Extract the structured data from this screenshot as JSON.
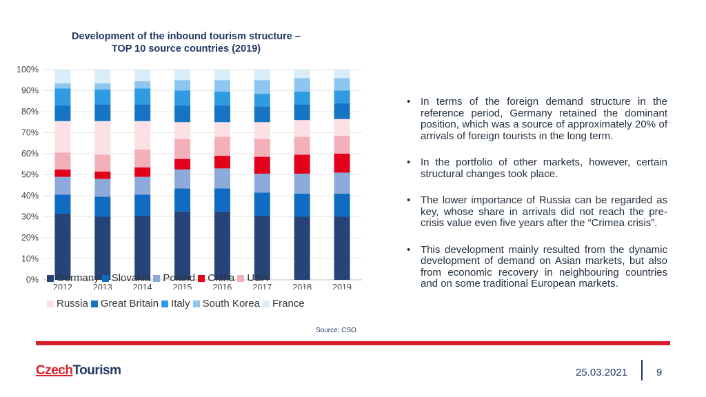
{
  "chart_data": {
    "type": "bar",
    "stacked": true,
    "title": "Development of the inbound tourism structure – TOP 10 source countries (2019)",
    "title_line1": "Development of the inbound tourism structure –",
    "title_line2": "TOP 10 source countries (2019)",
    "categories": [
      "2012",
      "2013",
      "2014",
      "2015",
      "2016",
      "2017",
      "2018",
      "2019"
    ],
    "y_ticks": [
      "0%",
      "10%",
      "20%",
      "30%",
      "40%",
      "50%",
      "60%",
      "70%",
      "80%",
      "90%",
      "100%"
    ],
    "ylim": [
      0,
      100
    ],
    "legend_position": "bottom",
    "series": [
      {
        "name": "Germany",
        "color": "#264478",
        "values": [
          31.5,
          30,
          30.5,
          32.5,
          32.5,
          30.5,
          30,
          30
        ]
      },
      {
        "name": "Slovakia",
        "color": "#0f6cc2",
        "values": [
          9,
          9.5,
          10,
          11,
          11,
          11,
          11,
          11
        ]
      },
      {
        "name": "Poland",
        "color": "#8eaadb",
        "values": [
          8.5,
          8.5,
          8.5,
          9,
          9.5,
          9,
          9.5,
          10
        ]
      },
      {
        "name": "China",
        "color": "#e2001a",
        "values": [
          3.5,
          3.5,
          4.5,
          5,
          6,
          8,
          9,
          9
        ]
      },
      {
        "name": "USA",
        "color": "#f4b0b8",
        "values": [
          8,
          8,
          8.5,
          9.5,
          9,
          8.5,
          8.5,
          8.5
        ]
      },
      {
        "name": "Russia",
        "color": "#fbe1e4",
        "values": [
          15,
          16,
          13.5,
          8,
          7,
          8,
          8,
          8
        ]
      },
      {
        "name": "Great Britain",
        "color": "#1574c4",
        "values": [
          7.5,
          8,
          8,
          8,
          8,
          7.5,
          7.5,
          7.5
        ]
      },
      {
        "name": "Italy",
        "color": "#2f9be3",
        "values": [
          8,
          7,
          7.5,
          7,
          6.5,
          6,
          6,
          6
        ]
      },
      {
        "name": "South Korea",
        "color": "#8dc6ee",
        "values": [
          2.5,
          3,
          3.5,
          5,
          5.5,
          6.5,
          6.5,
          6
        ]
      },
      {
        "name": "France",
        "color": "#d9ecf9",
        "values": [
          6.5,
          6.5,
          5.5,
          5,
          5,
          5,
          4,
          4
        ]
      }
    ]
  },
  "source": "Source: CSO",
  "bullets": [
    "In terms of the foreign demand structure in the reference period, Germany retained the dominant position, which was a source of approximately 20% of arrivals of foreign tourists in the long term.",
    "In the portfolio of other markets, however, certain structural changes took place.",
    "The lower importance of Russia can be regarded as key, whose share in arrivals did not reach the pre-crisis value even five years after the “Crimea crisis”.",
    "This development mainly resulted from the dynamic development of demand on Asian markets, but also from economic recovery in neighbouring countries and on some traditional European markets."
  ],
  "bullet_symbol": "•",
  "logo": {
    "part1": "Czech",
    "part2": "Tourism"
  },
  "footer": {
    "date": "25.03.2021",
    "page": "9"
  }
}
